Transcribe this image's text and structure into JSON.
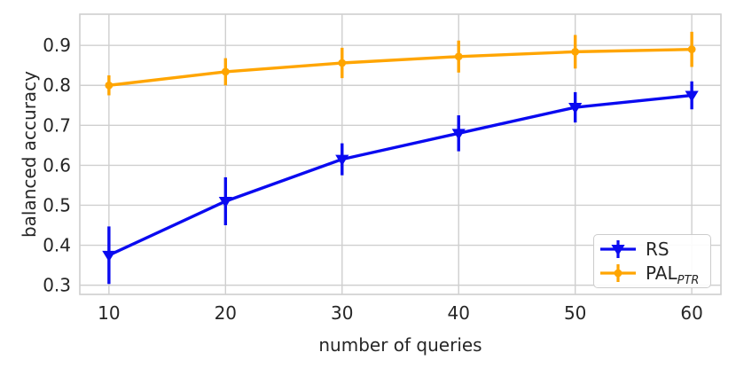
{
  "figure": {
    "background": "#ffffff"
  },
  "legend": {
    "position": "lower right",
    "items": [
      {
        "label": "RS",
        "sub": "",
        "color": "#0a0af0",
        "marker": "triangle-down"
      },
      {
        "label": "PAL",
        "sub": "PTR",
        "color": "#ffa500",
        "marker": "dot"
      }
    ]
  },
  "chart_data": {
    "type": "line",
    "title": "",
    "xlabel": "number of queries",
    "ylabel": "balanced accuracy",
    "x": [
      10,
      20,
      30,
      40,
      50,
      60
    ],
    "series": [
      {
        "name": "RS",
        "color": "#0a0af0",
        "marker": "triangle-down",
        "values": [
          0.375,
          0.51,
          0.615,
          0.68,
          0.745,
          0.775
        ],
        "yerr": [
          0.072,
          0.06,
          0.04,
          0.045,
          0.038,
          0.035
        ]
      },
      {
        "name": "PAL_PTR",
        "color": "#ffa500",
        "marker": "dot",
        "values": [
          0.8,
          0.834,
          0.856,
          0.872,
          0.884,
          0.89
        ],
        "yerr": [
          0.025,
          0.034,
          0.038,
          0.04,
          0.042,
          0.044
        ]
      }
    ],
    "xticks": [
      10,
      20,
      30,
      40,
      50,
      60
    ],
    "yticks": [
      0.3,
      0.4,
      0.5,
      0.6,
      0.7,
      0.8,
      0.9
    ],
    "xlim": [
      7.5,
      62.5
    ],
    "ylim": [
      0.277,
      0.978
    ],
    "grid": true,
    "legend_position": "lower right",
    "colors": {
      "grid": "#cfcfcf",
      "text": "#262626",
      "background": "#ffffff"
    }
  }
}
